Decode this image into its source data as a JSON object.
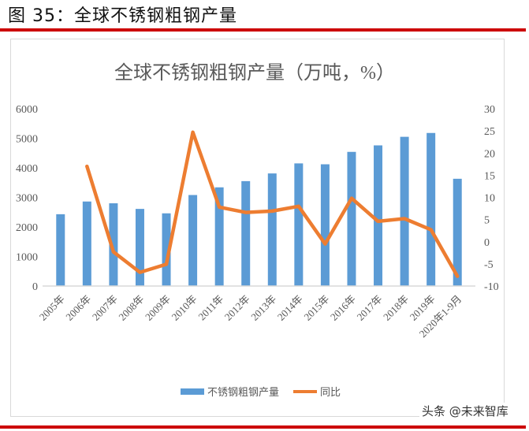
{
  "figure": {
    "title": "图 35：全球不锈钢粗钢产量",
    "watermark": "头条 @未来智库"
  },
  "colors": {
    "rule": "#cc0000",
    "bar": "#5b9bd5",
    "line": "#ed7d31",
    "axis_text": "#595959",
    "frame": "#d9d9d9"
  },
  "chart_data": {
    "type": "bar+line",
    "title": "全球不锈钢粗钢产量（万吨，%）",
    "categories": [
      "2005年",
      "2006年",
      "2007年",
      "2008年",
      "2009年",
      "2010年",
      "2011年",
      "2012年",
      "2013年",
      "2014年",
      "2015年",
      "2016年",
      "2017年",
      "2018年",
      "2019年",
      "2020年1-9月"
    ],
    "series": [
      {
        "name": "不锈钢粗钢产量",
        "type": "bar",
        "axis": "left",
        "values": [
          2430,
          2860,
          2800,
          2610,
          2460,
          3080,
          3340,
          3550,
          3810,
          4150,
          4120,
          4540,
          4760,
          5050,
          5180,
          3630
        ]
      },
      {
        "name": "同比",
        "type": "line",
        "axis": "right",
        "values": [
          null,
          17.0,
          -2.3,
          -6.9,
          -5.1,
          24.7,
          7.8,
          6.6,
          6.9,
          8.0,
          -0.5,
          9.8,
          4.6,
          5.2,
          2.7,
          -7.8
        ]
      }
    ],
    "y_left": {
      "ticks": [
        0,
        1000,
        2000,
        3000,
        4000,
        5000,
        6000
      ],
      "ylim": [
        0,
        6000
      ],
      "label": ""
    },
    "y_right": {
      "ticks": [
        -10,
        -5,
        0,
        5,
        10,
        15,
        20,
        25,
        30
      ],
      "ylim": [
        -10,
        30
      ],
      "label": ""
    },
    "xlabel": "",
    "grid": false,
    "legend": {
      "position": "bottom",
      "entries": [
        "不锈钢粗钢产量",
        "同比"
      ]
    }
  }
}
